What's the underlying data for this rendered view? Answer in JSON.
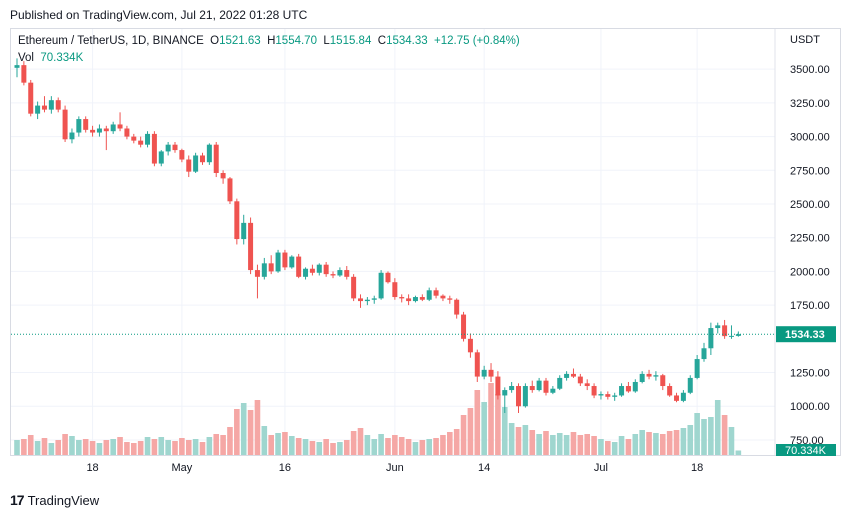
{
  "header": {
    "published": "Published on TradingView.com, Jul 21, 2022 01:28 UTC"
  },
  "legend": {
    "symbol": "Ethereum / TetherUS, 1D, BINANCE",
    "o_label": "O",
    "o": "1521.63",
    "h_label": "H",
    "h": "1554.70",
    "l_label": "L",
    "l": "1515.84",
    "c_label": "C",
    "c": "1534.33",
    "change": "+12.75 (+0.84%)",
    "vol_label": "Vol",
    "vol": "70.334K"
  },
  "axis": {
    "currency": "USDT"
  },
  "footer": {
    "brand": "TradingView"
  },
  "colors": {
    "up": "#26a69a",
    "down": "#ef5350",
    "vol_up": "#9fd6cf",
    "vol_down": "#f5a7a5",
    "last": "#089981"
  },
  "chart_data": {
    "type": "candlestick",
    "y_ticks": [
      "3500.00",
      "3250.00",
      "3000.00",
      "2750.00",
      "2500.00",
      "2250.00",
      "2000.00",
      "1750.00",
      "1250.00",
      "1000.00",
      "750.00"
    ],
    "y_tick_values": [
      3500,
      3250,
      3000,
      2750,
      2500,
      2250,
      2000,
      1750,
      1250,
      1000,
      750
    ],
    "ylim": [
      720,
      3620
    ],
    "x_ticks": [
      {
        "label": "18",
        "index": 11
      },
      {
        "label": "May",
        "index": 24
      },
      {
        "label": "16",
        "index": 39
      },
      {
        "label": "Jun",
        "index": 55
      },
      {
        "label": "14",
        "index": 68
      },
      {
        "label": "Jul",
        "index": 85
      },
      {
        "label": "18",
        "index": 99
      }
    ],
    "last_price": 1534.33,
    "last_price_label": "1534.33",
    "last_volume_label": "70.334K",
    "candles": [
      {
        "o": 3510,
        "h": 3580,
        "l": 3440,
        "c": 3530,
        "v": 150
      },
      {
        "o": 3530,
        "h": 3560,
        "l": 3380,
        "c": 3400,
        "v": 160
      },
      {
        "o": 3400,
        "h": 3420,
        "l": 3150,
        "c": 3170,
        "v": 200
      },
      {
        "o": 3170,
        "h": 3260,
        "l": 3130,
        "c": 3230,
        "v": 140
      },
      {
        "o": 3230,
        "h": 3300,
        "l": 3180,
        "c": 3200,
        "v": 170
      },
      {
        "o": 3200,
        "h": 3300,
        "l": 3170,
        "c": 3270,
        "v": 120
      },
      {
        "o": 3270,
        "h": 3290,
        "l": 3180,
        "c": 3200,
        "v": 150
      },
      {
        "o": 3200,
        "h": 3230,
        "l": 2960,
        "c": 2980,
        "v": 210
      },
      {
        "o": 2980,
        "h": 3060,
        "l": 2950,
        "c": 3030,
        "v": 190
      },
      {
        "o": 3030,
        "h": 3150,
        "l": 3000,
        "c": 3130,
        "v": 150
      },
      {
        "o": 3130,
        "h": 3150,
        "l": 3030,
        "c": 3050,
        "v": 160
      },
      {
        "o": 3050,
        "h": 3080,
        "l": 3000,
        "c": 3030,
        "v": 140
      },
      {
        "o": 3030,
        "h": 3090,
        "l": 3000,
        "c": 3060,
        "v": 120
      },
      {
        "o": 3060,
        "h": 3080,
        "l": 2900,
        "c": 3040,
        "v": 150
      },
      {
        "o": 3040,
        "h": 3110,
        "l": 3020,
        "c": 3090,
        "v": 160
      },
      {
        "o": 3090,
        "h": 3180,
        "l": 3040,
        "c": 3060,
        "v": 180
      },
      {
        "o": 3060,
        "h": 3080,
        "l": 2980,
        "c": 3000,
        "v": 130
      },
      {
        "o": 3000,
        "h": 3020,
        "l": 2950,
        "c": 2970,
        "v": 120
      },
      {
        "o": 2970,
        "h": 3000,
        "l": 2920,
        "c": 2940,
        "v": 140
      },
      {
        "o": 2940,
        "h": 3040,
        "l": 2920,
        "c": 3020,
        "v": 180
      },
      {
        "o": 3020,
        "h": 3040,
        "l": 2780,
        "c": 2800,
        "v": 160
      },
      {
        "o": 2800,
        "h": 2900,
        "l": 2780,
        "c": 2890,
        "v": 180
      },
      {
        "o": 2890,
        "h": 2960,
        "l": 2860,
        "c": 2940,
        "v": 150
      },
      {
        "o": 2940,
        "h": 2960,
        "l": 2880,
        "c": 2900,
        "v": 140
      },
      {
        "o": 2900,
        "h": 2910,
        "l": 2810,
        "c": 2830,
        "v": 170
      },
      {
        "o": 2830,
        "h": 2860,
        "l": 2700,
        "c": 2740,
        "v": 150
      },
      {
        "o": 2740,
        "h": 2880,
        "l": 2730,
        "c": 2860,
        "v": 160
      },
      {
        "o": 2860,
        "h": 2880,
        "l": 2790,
        "c": 2810,
        "v": 130
      },
      {
        "o": 2810,
        "h": 2950,
        "l": 2790,
        "c": 2940,
        "v": 180
      },
      {
        "o": 2940,
        "h": 2960,
        "l": 2700,
        "c": 2730,
        "v": 210
      },
      {
        "o": 2730,
        "h": 2750,
        "l": 2650,
        "c": 2690,
        "v": 200
      },
      {
        "o": 2690,
        "h": 2700,
        "l": 2500,
        "c": 2520,
        "v": 280
      },
      {
        "o": 2520,
        "h": 2540,
        "l": 2200,
        "c": 2240,
        "v": 460
      },
      {
        "o": 2240,
        "h": 2420,
        "l": 2200,
        "c": 2360,
        "v": 520
      },
      {
        "o": 2360,
        "h": 2400,
        "l": 1980,
        "c": 2010,
        "v": 450
      },
      {
        "o": 2010,
        "h": 2050,
        "l": 1800,
        "c": 1960,
        "v": 550
      },
      {
        "o": 1960,
        "h": 2100,
        "l": 1940,
        "c": 2060,
        "v": 290
      },
      {
        "o": 2060,
        "h": 2120,
        "l": 1980,
        "c": 2000,
        "v": 200
      },
      {
        "o": 2000,
        "h": 2160,
        "l": 1990,
        "c": 2140,
        "v": 220
      },
      {
        "o": 2140,
        "h": 2160,
        "l": 2010,
        "c": 2030,
        "v": 230
      },
      {
        "o": 2030,
        "h": 2120,
        "l": 2020,
        "c": 2110,
        "v": 190
      },
      {
        "o": 2110,
        "h": 2130,
        "l": 1950,
        "c": 1960,
        "v": 170
      },
      {
        "o": 1960,
        "h": 2030,
        "l": 1940,
        "c": 2020,
        "v": 160
      },
      {
        "o": 2020,
        "h": 2050,
        "l": 1970,
        "c": 1990,
        "v": 140
      },
      {
        "o": 1990,
        "h": 2060,
        "l": 1970,
        "c": 2050,
        "v": 130
      },
      {
        "o": 2050,
        "h": 2070,
        "l": 1960,
        "c": 1980,
        "v": 160
      },
      {
        "o": 1980,
        "h": 2000,
        "l": 1950,
        "c": 1970,
        "v": 120
      },
      {
        "o": 1970,
        "h": 2030,
        "l": 1960,
        "c": 2010,
        "v": 130
      },
      {
        "o": 2010,
        "h": 2040,
        "l": 1940,
        "c": 1960,
        "v": 150
      },
      {
        "o": 1960,
        "h": 1980,
        "l": 1780,
        "c": 1800,
        "v": 240
      },
      {
        "o": 1800,
        "h": 1830,
        "l": 1730,
        "c": 1780,
        "v": 270
      },
      {
        "o": 1780,
        "h": 1810,
        "l": 1750,
        "c": 1790,
        "v": 200
      },
      {
        "o": 1790,
        "h": 1820,
        "l": 1760,
        "c": 1800,
        "v": 160
      },
      {
        "o": 1800,
        "h": 2010,
        "l": 1790,
        "c": 1990,
        "v": 210
      },
      {
        "o": 1990,
        "h": 2000,
        "l": 1910,
        "c": 1920,
        "v": 170
      },
      {
        "o": 1920,
        "h": 1950,
        "l": 1790,
        "c": 1810,
        "v": 200
      },
      {
        "o": 1810,
        "h": 1830,
        "l": 1770,
        "c": 1800,
        "v": 180
      },
      {
        "o": 1800,
        "h": 1830,
        "l": 1750,
        "c": 1780,
        "v": 160
      },
      {
        "o": 1780,
        "h": 1820,
        "l": 1770,
        "c": 1810,
        "v": 130
      },
      {
        "o": 1810,
        "h": 1830,
        "l": 1780,
        "c": 1790,
        "v": 150
      },
      {
        "o": 1790,
        "h": 1880,
        "l": 1780,
        "c": 1860,
        "v": 160
      },
      {
        "o": 1860,
        "h": 1880,
        "l": 1800,
        "c": 1820,
        "v": 170
      },
      {
        "o": 1820,
        "h": 1830,
        "l": 1780,
        "c": 1800,
        "v": 200
      },
      {
        "o": 1800,
        "h": 1820,
        "l": 1760,
        "c": 1790,
        "v": 230
      },
      {
        "o": 1790,
        "h": 1800,
        "l": 1650,
        "c": 1680,
        "v": 260
      },
      {
        "o": 1680,
        "h": 1700,
        "l": 1480,
        "c": 1500,
        "v": 400
      },
      {
        "o": 1500,
        "h": 1540,
        "l": 1360,
        "c": 1400,
        "v": 470
      },
      {
        "o": 1400,
        "h": 1420,
        "l": 1180,
        "c": 1220,
        "v": 650
      },
      {
        "o": 1220,
        "h": 1300,
        "l": 1200,
        "c": 1270,
        "v": 530
      },
      {
        "o": 1270,
        "h": 1320,
        "l": 1180,
        "c": 1220,
        "v": 720
      },
      {
        "o": 1220,
        "h": 1260,
        "l": 1050,
        "c": 1080,
        "v": 610
      },
      {
        "o": 1080,
        "h": 1140,
        "l": 950,
        "c": 1120,
        "v": 480
      },
      {
        "o": 1120,
        "h": 1180,
        "l": 1100,
        "c": 1150,
        "v": 320
      },
      {
        "o": 1150,
        "h": 1170,
        "l": 950,
        "c": 1000,
        "v": 280
      },
      {
        "o": 1000,
        "h": 1170,
        "l": 990,
        "c": 1150,
        "v": 300
      },
      {
        "o": 1150,
        "h": 1190,
        "l": 1100,
        "c": 1120,
        "v": 250
      },
      {
        "o": 1120,
        "h": 1210,
        "l": 1110,
        "c": 1190,
        "v": 210
      },
      {
        "o": 1190,
        "h": 1210,
        "l": 1080,
        "c": 1100,
        "v": 240
      },
      {
        "o": 1100,
        "h": 1150,
        "l": 1090,
        "c": 1130,
        "v": 200
      },
      {
        "o": 1130,
        "h": 1230,
        "l": 1120,
        "c": 1210,
        "v": 220
      },
      {
        "o": 1210,
        "h": 1260,
        "l": 1190,
        "c": 1240,
        "v": 200
      },
      {
        "o": 1240,
        "h": 1280,
        "l": 1210,
        "c": 1220,
        "v": 230
      },
      {
        "o": 1220,
        "h": 1240,
        "l": 1150,
        "c": 1170,
        "v": 200
      },
      {
        "o": 1170,
        "h": 1200,
        "l": 1120,
        "c": 1150,
        "v": 210
      },
      {
        "o": 1150,
        "h": 1170,
        "l": 1060,
        "c": 1080,
        "v": 190
      },
      {
        "o": 1080,
        "h": 1110,
        "l": 1050,
        "c": 1090,
        "v": 160
      },
      {
        "o": 1090,
        "h": 1110,
        "l": 1050,
        "c": 1070,
        "v": 140
      },
      {
        "o": 1070,
        "h": 1100,
        "l": 1040,
        "c": 1080,
        "v": 130
      },
      {
        "o": 1080,
        "h": 1170,
        "l": 1070,
        "c": 1150,
        "v": 190
      },
      {
        "o": 1150,
        "h": 1180,
        "l": 1100,
        "c": 1110,
        "v": 160
      },
      {
        "o": 1110,
        "h": 1200,
        "l": 1100,
        "c": 1180,
        "v": 210
      },
      {
        "o": 1180,
        "h": 1260,
        "l": 1170,
        "c": 1240,
        "v": 250
      },
      {
        "o": 1240,
        "h": 1270,
        "l": 1200,
        "c": 1220,
        "v": 230
      },
      {
        "o": 1220,
        "h": 1260,
        "l": 1190,
        "c": 1230,
        "v": 220
      },
      {
        "o": 1230,
        "h": 1240,
        "l": 1120,
        "c": 1150,
        "v": 210
      },
      {
        "o": 1150,
        "h": 1170,
        "l": 1070,
        "c": 1080,
        "v": 240
      },
      {
        "o": 1080,
        "h": 1100,
        "l": 1030,
        "c": 1040,
        "v": 250
      },
      {
        "o": 1040,
        "h": 1120,
        "l": 1030,
        "c": 1100,
        "v": 270
      },
      {
        "o": 1100,
        "h": 1230,
        "l": 1090,
        "c": 1210,
        "v": 300
      },
      {
        "o": 1210,
        "h": 1380,
        "l": 1200,
        "c": 1350,
        "v": 420
      },
      {
        "o": 1350,
        "h": 1470,
        "l": 1330,
        "c": 1430,
        "v": 360
      },
      {
        "o": 1430,
        "h": 1620,
        "l": 1380,
        "c": 1580,
        "v": 380
      },
      {
        "o": 1580,
        "h": 1620,
        "l": 1540,
        "c": 1600,
        "v": 550
      },
      {
        "o": 1600,
        "h": 1640,
        "l": 1500,
        "c": 1520,
        "v": 400
      },
      {
        "o": 1520,
        "h": 1600,
        "l": 1500,
        "c": 1522,
        "v": 280
      },
      {
        "o": 1521.63,
        "h": 1554.7,
        "l": 1515.84,
        "c": 1534.33,
        "v": 45
      }
    ]
  }
}
